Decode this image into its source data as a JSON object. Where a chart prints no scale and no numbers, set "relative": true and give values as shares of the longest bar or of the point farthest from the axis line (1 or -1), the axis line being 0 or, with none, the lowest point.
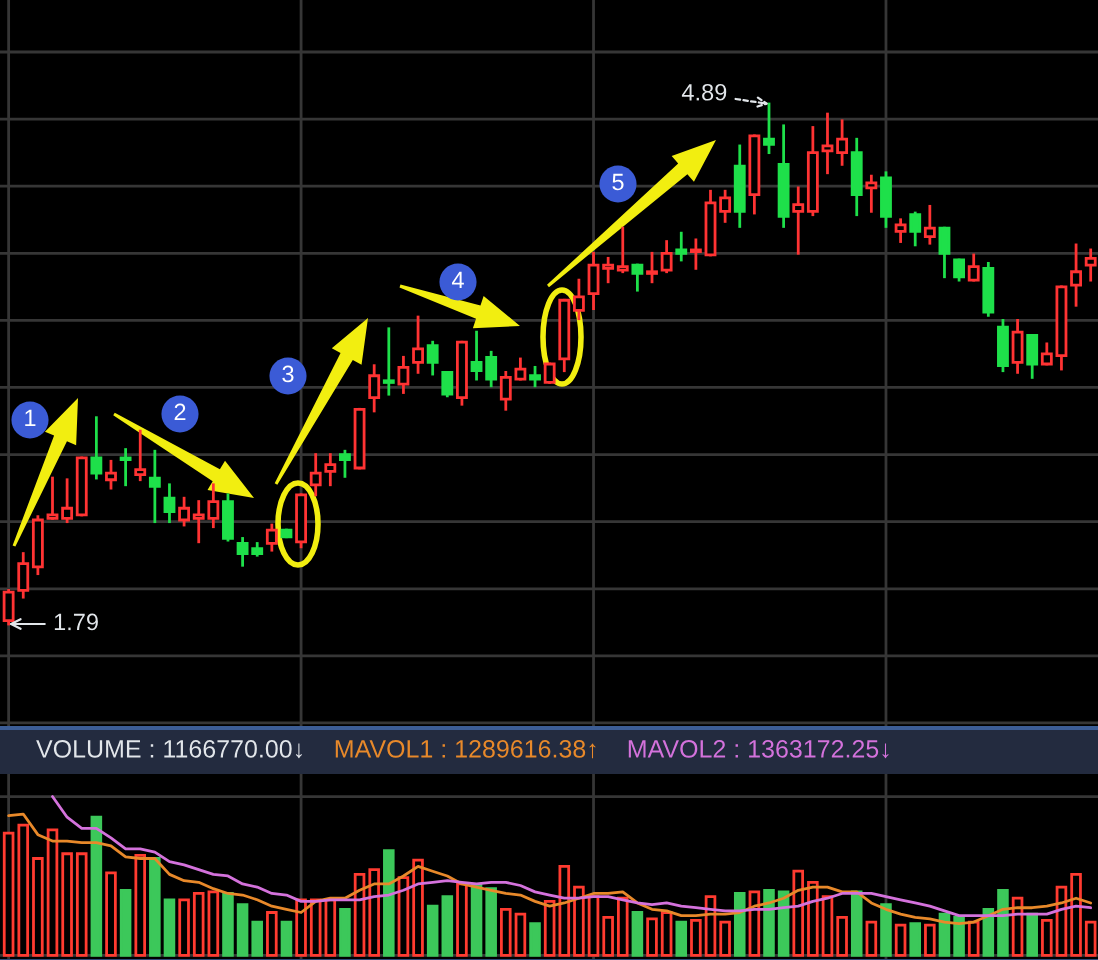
{
  "chart_data": [
    {
      "type": "candlestick",
      "categories": [
        null,
        null,
        null,
        null,
        null,
        null,
        null,
        null,
        null,
        null,
        null,
        null,
        null,
        null,
        null,
        null,
        null,
        null,
        null,
        null,
        null,
        null,
        null,
        null,
        null,
        null,
        null,
        null,
        null,
        null,
        null,
        null,
        null,
        null,
        null,
        null,
        null,
        null,
        null,
        null,
        null,
        null,
        null,
        null,
        null,
        null,
        null,
        null,
        null,
        null,
        null,
        null,
        null,
        null,
        null,
        null,
        null,
        null,
        null,
        null,
        null,
        null,
        null,
        null,
        null,
        null,
        null,
        null,
        null,
        null,
        null,
        null,
        null,
        null,
        null
      ],
      "ohlc": [
        [
          1.81,
          1.99,
          1.79,
          1.98
        ],
        [
          1.99,
          2.21,
          1.95,
          2.15
        ],
        [
          2.13,
          2.43,
          2.09,
          2.41
        ],
        [
          2.42,
          2.66,
          2.42,
          2.44
        ],
        [
          2.42,
          2.65,
          2.4,
          2.48
        ],
        [
          2.44,
          2.78,
          2.44,
          2.78
        ],
        [
          2.78,
          3.02,
          2.66,
          2.69
        ],
        [
          2.65,
          2.76,
          2.6,
          2.69
        ],
        [
          2.78,
          2.83,
          2.62,
          2.77
        ],
        [
          2.68,
          2.94,
          2.65,
          2.71
        ],
        [
          2.66,
          2.82,
          2.4,
          2.61
        ],
        [
          2.54,
          2.62,
          2.4,
          2.46
        ],
        [
          2.41,
          2.54,
          2.38,
          2.48
        ],
        [
          2.42,
          2.52,
          2.28,
          2.44
        ],
        [
          2.42,
          2.62,
          2.37,
          2.52
        ],
        [
          2.52,
          2.56,
          2.29,
          2.3
        ],
        [
          2.27,
          2.3,
          2.14,
          2.21
        ],
        [
          2.24,
          2.27,
          2.2,
          2.21
        ],
        [
          2.27,
          2.38,
          2.23,
          2.35
        ],
        [
          2.35,
          2.35,
          2.31,
          2.31
        ],
        [
          2.28,
          2.56,
          2.25,
          2.56
        ],
        [
          2.62,
          2.8,
          2.56,
          2.69
        ],
        [
          2.7,
          2.8,
          2.62,
          2.74
        ],
        [
          2.8,
          2.82,
          2.67,
          2.77
        ],
        [
          2.72,
          3.07,
          2.72,
          3.07
        ],
        [
          3.14,
          3.33,
          3.06,
          3.27
        ],
        [
          3.24,
          3.55,
          3.16,
          3.23
        ],
        [
          3.22,
          3.38,
          3.17,
          3.32
        ],
        [
          3.35,
          3.62,
          3.29,
          3.43
        ],
        [
          3.45,
          3.47,
          3.28,
          3.35
        ],
        [
          3.29,
          3.29,
          3.15,
          3.16
        ],
        [
          3.14,
          3.47,
          3.1,
          3.47
        ],
        [
          3.35,
          3.53,
          3.25,
          3.3
        ],
        [
          3.38,
          3.41,
          3.21,
          3.25
        ],
        [
          3.13,
          3.29,
          3.07,
          3.26
        ],
        [
          3.25,
          3.37,
          3.25,
          3.31
        ],
        [
          3.27,
          3.32,
          3.21,
          3.25
        ],
        [
          3.23,
          3.34,
          3.23,
          3.34
        ],
        [
          3.37,
          3.72,
          3.3,
          3.72
        ],
        [
          3.66,
          3.84,
          3.61,
          3.74
        ],
        [
          3.76,
          4.0,
          3.67,
          3.93
        ],
        [
          3.91,
          3.97,
          3.83,
          3.93
        ],
        [
          3.9,
          4.15,
          3.89,
          3.92
        ],
        [
          3.93,
          3.93,
          3.78,
          3.88
        ],
        [
          3.88,
          4.0,
          3.83,
          3.89
        ],
        [
          3.9,
          4.07,
          3.89,
          4.0
        ],
        [
          4.02,
          4.12,
          3.96,
          4.0
        ],
        [
          4.01,
          4.08,
          3.91,
          4.02
        ],
        [
          3.99,
          4.37,
          3.99,
          4.3
        ],
        [
          4.25,
          4.37,
          4.19,
          4.33
        ],
        [
          4.52,
          4.64,
          4.16,
          4.25
        ],
        [
          4.35,
          4.7,
          4.24,
          4.7
        ],
        [
          4.68,
          4.89,
          4.6,
          4.65
        ],
        [
          4.53,
          4.76,
          4.16,
          4.22
        ],
        [
          4.25,
          4.39,
          4.0,
          4.29
        ],
        [
          4.25,
          4.75,
          4.23,
          4.6
        ],
        [
          4.61,
          4.83,
          4.48,
          4.64
        ],
        [
          4.6,
          4.79,
          4.53,
          4.68
        ],
        [
          4.6,
          4.68,
          4.23,
          4.35
        ],
        [
          4.39,
          4.46,
          4.25,
          4.42
        ],
        [
          4.45,
          4.48,
          4.16,
          4.22
        ],
        [
          4.13,
          4.2,
          4.07,
          4.17
        ],
        [
          4.23,
          4.24,
          4.05,
          4.13
        ],
        [
          4.1,
          4.28,
          4.06,
          4.15
        ],
        [
          4.15,
          4.15,
          3.86,
          4.0
        ],
        [
          3.96,
          3.96,
          3.84,
          3.86
        ],
        [
          3.84,
          3.99,
          3.84,
          3.92
        ],
        [
          3.91,
          3.94,
          3.63,
          3.65
        ],
        [
          3.56,
          3.6,
          3.3,
          3.33
        ],
        [
          3.35,
          3.6,
          3.29,
          3.53
        ],
        [
          3.51,
          3.51,
          3.26,
          3.34
        ],
        [
          3.34,
          3.46,
          3.34,
          3.4
        ],
        [
          3.39,
          3.8,
          3.31,
          3.8
        ],
        [
          3.81,
          4.05,
          3.69,
          3.89
        ],
        [
          3.93,
          4.02,
          3.84,
          3.97
        ]
      ],
      "colors": [
        "#ff3333",
        "#ff3333",
        "#ff3333",
        "#ff3333",
        "#ff3333",
        "#ff3333",
        "#1ee04a",
        "#ff3333",
        "#1ee04a",
        "#ff3333",
        "#1ee04a",
        "#1ee04a",
        "#ff3333",
        "#ff3333",
        "#ff3333",
        "#1ee04a",
        "#1ee04a",
        "#1ee04a",
        "#ff3333",
        "#1ee04a",
        "#ff3333",
        "#ff3333",
        "#ff3333",
        "#1ee04a",
        "#ff3333",
        "#ff3333",
        "#1ee04a",
        "#ff3333",
        "#ff3333",
        "#1ee04a",
        "#1ee04a",
        "#ff3333",
        "#1ee04a",
        "#1ee04a",
        "#ff3333",
        "#ff3333",
        "#1ee04a",
        "#ff3333",
        "#ff3333",
        "#ff3333",
        "#ff3333",
        "#ff3333",
        "#ff3333",
        "#1ee04a",
        "#ff3333",
        "#ff3333",
        "#1ee04a",
        "#ff3333",
        "#ff3333",
        "#ff3333",
        "#1ee04a",
        "#ff3333",
        "#1ee04a",
        "#1ee04a",
        "#ff3333",
        "#ff3333",
        "#ff3333",
        "#ff3333",
        "#1ee04a",
        "#ff3333",
        "#1ee04a",
        "#ff3333",
        "#1ee04a",
        "#ff3333",
        "#1ee04a",
        "#1ee04a",
        "#ff3333",
        "#1ee04a",
        "#1ee04a",
        "#ff3333",
        "#1ee04a",
        "#ff3333",
        "#ff3333",
        "#ff3333",
        "#ff3333"
      ],
      "annotations": [
        "1",
        "2",
        "3",
        "4",
        "5",
        "4.89",
        "1.79"
      ],
      "grid": true,
      "tick_labels": false
    },
    {
      "type": "bar",
      "title": "VOLUME : 1166770.00↓",
      "relative": true,
      "categories": [
        null,
        null,
        null,
        null,
        null,
        null,
        null,
        null,
        null,
        null,
        null,
        null,
        null,
        null,
        null,
        null,
        null,
        null,
        null,
        null,
        null,
        null,
        null,
        null,
        null,
        null,
        null,
        null,
        null,
        null,
        null,
        null,
        null,
        null,
        null,
        null,
        null,
        null,
        null,
        null,
        null,
        null,
        null,
        null,
        null,
        null,
        null,
        null,
        null,
        null,
        null,
        null,
        null,
        null,
        null,
        null,
        null,
        null,
        null,
        null,
        null,
        null,
        null,
        null,
        null,
        null,
        null,
        null,
        null,
        null,
        null,
        null,
        null,
        null,
        null
      ],
      "series": [
        {
          "colors": [
            "#ff3b30",
            "#ff3b30",
            "#ff3b30",
            "#ff3b30",
            "#ff3b30",
            "#ff3b30",
            "#3cc85a",
            "#ff3b30",
            "#3cc85a",
            "#ff3b30",
            "#3cc85a",
            "#3cc85a",
            "#ff3b30",
            "#ff3b30",
            "#ff3b30",
            "#3cc85a",
            "#3cc85a",
            "#3cc85a",
            "#ff3b30",
            "#3cc85a",
            "#ff3b30",
            "#ff3b30",
            "#ff3b30",
            "#3cc85a",
            "#ff3b30",
            "#ff3b30",
            "#3cc85a",
            "#ff3b30",
            "#ff3b30",
            "#3cc85a",
            "#3cc85a",
            "#ff3b30",
            "#3cc85a",
            "#3cc85a",
            "#ff3b30",
            "#ff3b30",
            "#3cc85a",
            "#ff3b30",
            "#ff3b30",
            "#ff3b30",
            "#ff3b30",
            "#ff3b30",
            "#ff3b30",
            "#3cc85a",
            "#ff3b30",
            "#ff3b30",
            "#3cc85a",
            "#ff3b30",
            "#ff3b30",
            "#ff3b30",
            "#3cc85a",
            "#ff3b30",
            "#3cc85a",
            "#3cc85a",
            "#ff3b30",
            "#ff3b30",
            "#ff3b30",
            "#ff3b30",
            "#3cc85a",
            "#ff3b30",
            "#3cc85a",
            "#ff3b30",
            "#3cc85a",
            "#ff3b30",
            "#3cc85a",
            "#3cc85a",
            "#ff3b30",
            "#3cc85a",
            "#3cc85a",
            "#ff3b30",
            "#3cc85a",
            "#ff3b30",
            "#ff3b30",
            "#ff3b30",
            "#ff3b30"
          ],
          "values": [
            0.77,
            0.82,
            0.61,
            0.79,
            0.64,
            0.64,
            0.87,
            0.52,
            0.41,
            0.63,
            0.61,
            0.35,
            0.35,
            0.39,
            0.4,
            0.39,
            0.32,
            0.21,
            0.27,
            0.21,
            0.35,
            0.35,
            0.35,
            0.29,
            0.51,
            0.54,
            0.66,
            0.49,
            0.6,
            0.31,
            0.37,
            0.45,
            0.44,
            0.42,
            0.29,
            0.26,
            0.2,
            0.34,
            0.56,
            0.43,
            0.37,
            0.24,
            0.36,
            0.27,
            0.23,
            0.27,
            0.21,
            0.22,
            0.37,
            0.21,
            0.39,
            0.4,
            0.41,
            0.4,
            0.53,
            0.46,
            0.37,
            0.24,
            0.4,
            0.21,
            0.32,
            0.19,
            0.2,
            0.19,
            0.26,
            0.24,
            0.21,
            0.29,
            0.41,
            0.36,
            0.26,
            0.22,
            0.43,
            0.51,
            0.21
          ]
        },
        {
          "type": "line",
          "name": "MAVOL1 : 1289616.38↑",
          "color": "#e8892a",
          "values": [
            0.88,
            0.89,
            0.76,
            0.72,
            0.72,
            0.71,
            0.71,
            0.69,
            0.62,
            0.61,
            0.61,
            0.51,
            0.47,
            0.46,
            0.42,
            0.39,
            0.38,
            0.35,
            0.31,
            0.29,
            0.27,
            0.34,
            0.36,
            0.36,
            0.41,
            0.45,
            0.45,
            0.5,
            0.56,
            0.53,
            0.5,
            0.45,
            0.43,
            0.41,
            0.39,
            0.38,
            0.34,
            0.31,
            0.33,
            0.36,
            0.39,
            0.39,
            0.4,
            0.33,
            0.29,
            0.28,
            0.25,
            0.25,
            0.26,
            0.26,
            0.27,
            0.31,
            0.33,
            0.36,
            0.41,
            0.43,
            0.43,
            0.4,
            0.4,
            0.33,
            0.29,
            0.26,
            0.24,
            0.23,
            0.21,
            0.2,
            0.21,
            0.25,
            0.29,
            0.3,
            0.3,
            0.31,
            0.33,
            0.36,
            0.33
          ]
        },
        {
          "type": "line",
          "name": "MAVOL2 : 1363172.25↓",
          "color": "#d472dc",
          "values": [
            null,
            null,
            null,
            1.0,
            0.87,
            0.8,
            0.8,
            0.74,
            0.67,
            0.67,
            0.65,
            0.59,
            0.57,
            0.54,
            0.51,
            0.5,
            0.45,
            0.43,
            0.39,
            0.38,
            0.34,
            0.34,
            0.35,
            0.35,
            0.35,
            0.37,
            0.38,
            0.41,
            0.45,
            0.46,
            0.47,
            0.46,
            0.45,
            0.46,
            0.46,
            0.44,
            0.4,
            0.38,
            0.36,
            0.36,
            0.37,
            0.37,
            0.35,
            0.33,
            0.32,
            0.33,
            0.31,
            0.3,
            0.29,
            0.28,
            0.28,
            0.29,
            0.29,
            0.3,
            0.31,
            0.34,
            0.36,
            0.39,
            0.39,
            0.39,
            0.37,
            0.35,
            0.33,
            0.31,
            0.28,
            0.25,
            0.25,
            0.25,
            0.25,
            0.26,
            0.26,
            0.26,
            0.29,
            0.31,
            0.3
          ]
        }
      ],
      "legend": "top",
      "grid": true,
      "tick_labels": false
    }
  ]
}
